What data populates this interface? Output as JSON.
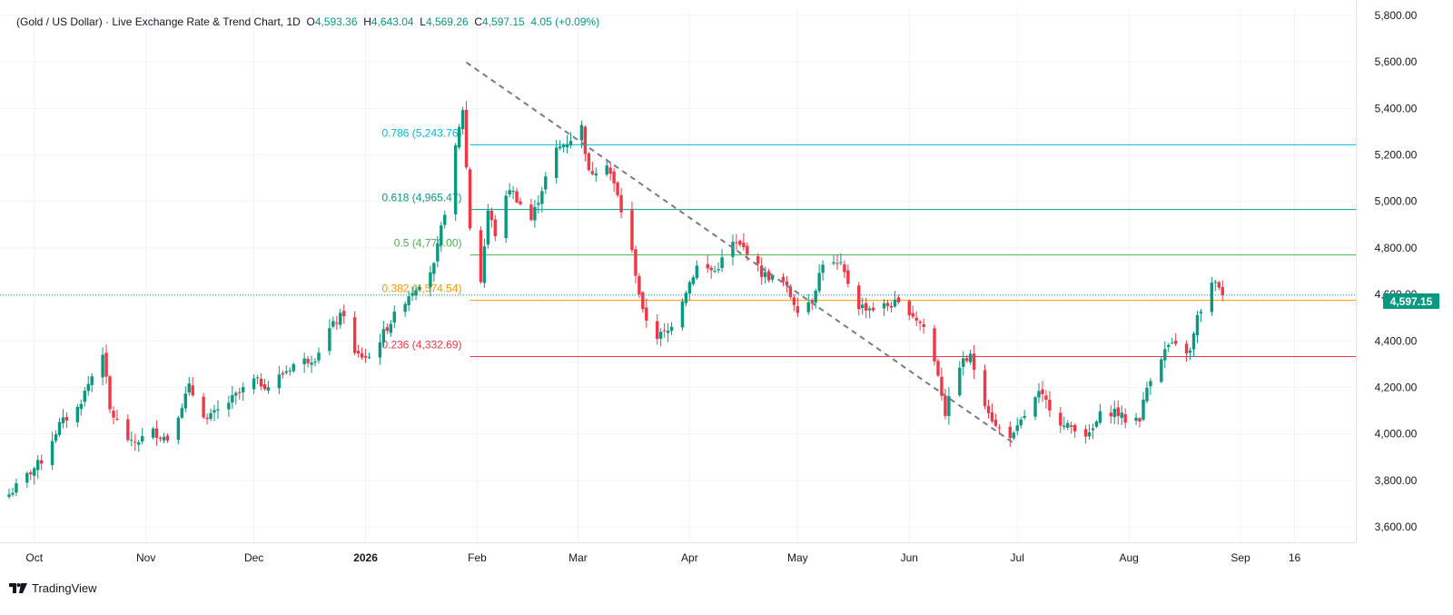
{
  "header": {
    "title": "(Gold / US Dollar) · Live Exchange Rate & Trend Chart, 1D",
    "o_label": "O",
    "o_value": "4,593.36",
    "h_label": "H",
    "h_value": "4,643.04",
    "l_label": "L",
    "l_value": "4,569.26",
    "c_label": "C",
    "c_value": "4,597.15",
    "change": "4.05 (+0.09%)"
  },
  "brand": {
    "logo_icon": "tradingview-logo-icon",
    "name": "TradingView"
  },
  "last_price": {
    "label": "4,597.15",
    "value": 4597.15,
    "color": "#089981"
  },
  "colors": {
    "up": "#089981",
    "down": "#f23645",
    "grid": "#f0f3fa",
    "axis_text": "#131722"
  },
  "chart_data": {
    "type": "candlestick",
    "title": "(Gold / US Dollar) · Live Exchange Rate & Trend Chart, 1D",
    "ylim": [
      3520,
      5850
    ],
    "y_ticks": [
      3600,
      3800,
      4000,
      4200,
      4400,
      4600,
      4800,
      5000,
      5200,
      5400,
      5600,
      5800
    ],
    "y_tick_labels": [
      "3,600.00",
      "3,800.00",
      "4,000.00",
      "4,200.00",
      "4,400.00",
      "4,600.00",
      "4,800.00",
      "5,000.00",
      "5,200.00",
      "5,400.00",
      "5,600.00",
      "5,800.00"
    ],
    "x_ticks": [
      {
        "label": "Oct",
        "date": "2025-10-01",
        "bold": false
      },
      {
        "label": "Nov",
        "date": "2025-11-01",
        "bold": false
      },
      {
        "label": "Dec",
        "date": "2025-12-01",
        "bold": false
      },
      {
        "label": "2026",
        "date": "2026-01-01",
        "bold": true
      },
      {
        "label": "Feb",
        "date": "2026-02-01",
        "bold": false
      },
      {
        "label": "Mar",
        "date": "2026-03-01",
        "bold": false
      },
      {
        "label": "Apr",
        "date": "2026-04-01",
        "bold": false
      },
      {
        "label": "May",
        "date": "2026-05-01",
        "bold": false
      },
      {
        "label": "Jun",
        "date": "2026-06-01",
        "bold": false
      },
      {
        "label": "Jul",
        "date": "2026-07-01",
        "bold": false
      },
      {
        "label": "Aug",
        "date": "2026-08-01",
        "bold": false
      },
      {
        "label": "Sep",
        "date": "2026-09-01",
        "bold": false
      },
      {
        "label": "16",
        "date": "2026-09-16",
        "bold": false
      }
    ],
    "x_range": [
      "2025-09-24",
      "2026-10-01"
    ],
    "grid": true,
    "fibonacci": [
      {
        "ratio": "0.236",
        "label": "0.236 (4,332.69)",
        "price": 4332.69,
        "color": "#f23645"
      },
      {
        "ratio": "0.382",
        "label": "0.382 (4,574.54)",
        "price": 4574.54,
        "color": "#ff9800"
      },
      {
        "ratio": "0.5",
        "label": "0.5 (4,770.00)",
        "price": 4770.0,
        "color": "#4caf50"
      },
      {
        "ratio": "0.618",
        "label": "0.618 (4,965.47)",
        "price": 4965.47,
        "color": "#089981"
      },
      {
        "ratio": "0.786",
        "label": "0.786 (5,243.76)",
        "price": 5243.76,
        "color": "#00bcd4"
      }
    ],
    "fib_start_date": "2026-01-30",
    "trendline": {
      "from": {
        "date": "2026-01-29",
        "price": 5598
      },
      "to": {
        "date": "2026-06-30",
        "price": 3960
      }
    },
    "anchors": [
      {
        "date": "2025-09-24",
        "price": 3740
      },
      {
        "date": "2025-10-03",
        "price": 3885
      },
      {
        "date": "2025-10-08",
        "price": 4040
      },
      {
        "date": "2025-10-13",
        "price": 4110
      },
      {
        "date": "2025-10-20",
        "price": 4355
      },
      {
        "date": "2025-10-22",
        "price": 4100
      },
      {
        "date": "2025-10-28",
        "price": 3955
      },
      {
        "date": "2025-11-03",
        "price": 4010
      },
      {
        "date": "2025-11-07",
        "price": 3980
      },
      {
        "date": "2025-11-13",
        "price": 4200
      },
      {
        "date": "2025-11-18",
        "price": 4060
      },
      {
        "date": "2025-11-25",
        "price": 4150
      },
      {
        "date": "2025-12-01",
        "price": 4230
      },
      {
        "date": "2025-12-05",
        "price": 4205
      },
      {
        "date": "2025-12-12",
        "price": 4300
      },
      {
        "date": "2025-12-18",
        "price": 4330
      },
      {
        "date": "2025-12-22",
        "price": 4450
      },
      {
        "date": "2025-12-26",
        "price": 4520
      },
      {
        "date": "2025-12-29",
        "price": 4340
      },
      {
        "date": "2026-01-02",
        "price": 4330
      },
      {
        "date": "2026-01-07",
        "price": 4460
      },
      {
        "date": "2026-01-13",
        "price": 4600
      },
      {
        "date": "2026-01-20",
        "price": 4720
      },
      {
        "date": "2026-01-23",
        "price": 4960
      },
      {
        "date": "2026-01-28",
        "price": 5400
      },
      {
        "date": "2026-01-30",
        "price": 4890
      },
      {
        "date": "2026-02-02",
        "price": 4660
      },
      {
        "date": "2026-02-04",
        "price": 4960
      },
      {
        "date": "2026-02-06",
        "price": 4860
      },
      {
        "date": "2026-02-10",
        "price": 5060
      },
      {
        "date": "2026-02-16",
        "price": 4920
      },
      {
        "date": "2026-02-20",
        "price": 5100
      },
      {
        "date": "2026-02-23",
        "price": 5220
      },
      {
        "date": "2026-02-27",
        "price": 5270
      },
      {
        "date": "2026-03-02",
        "price": 5320
      },
      {
        "date": "2026-03-04",
        "price": 5120
      },
      {
        "date": "2026-03-09",
        "price": 5170
      },
      {
        "date": "2026-03-12",
        "price": 5020
      },
      {
        "date": "2026-03-16",
        "price": 4780
      },
      {
        "date": "2026-03-19",
        "price": 4520
      },
      {
        "date": "2026-03-23",
        "price": 4420
      },
      {
        "date": "2026-03-26",
        "price": 4440
      },
      {
        "date": "2026-03-31",
        "price": 4620
      },
      {
        "date": "2026-04-03",
        "price": 4720
      },
      {
        "date": "2026-04-08",
        "price": 4700
      },
      {
        "date": "2026-04-13",
        "price": 4820
      },
      {
        "date": "2026-04-17",
        "price": 4790
      },
      {
        "date": "2026-04-21",
        "price": 4690
      },
      {
        "date": "2026-04-27",
        "price": 4650
      },
      {
        "date": "2026-05-01",
        "price": 4540
      },
      {
        "date": "2026-05-05",
        "price": 4580
      },
      {
        "date": "2026-05-08",
        "price": 4740
      },
      {
        "date": "2026-05-13",
        "price": 4720
      },
      {
        "date": "2026-05-18",
        "price": 4550
      },
      {
        "date": "2026-05-22",
        "price": 4540
      },
      {
        "date": "2026-05-28",
        "price": 4560
      },
      {
        "date": "2026-06-01",
        "price": 4530
      },
      {
        "date": "2026-06-05",
        "price": 4460
      },
      {
        "date": "2026-06-09",
        "price": 4260
      },
      {
        "date": "2026-06-11",
        "price": 4090
      },
      {
        "date": "2026-06-15",
        "price": 4300
      },
      {
        "date": "2026-06-18",
        "price": 4330
      },
      {
        "date": "2026-06-22",
        "price": 4140
      },
      {
        "date": "2026-06-25",
        "price": 4030
      },
      {
        "date": "2026-06-30",
        "price": 3990
      },
      {
        "date": "2026-07-03",
        "price": 4080
      },
      {
        "date": "2026-07-07",
        "price": 4170
      },
      {
        "date": "2026-07-10",
        "price": 4120
      },
      {
        "date": "2026-07-14",
        "price": 4030
      },
      {
        "date": "2026-07-17",
        "price": 4030
      },
      {
        "date": "2026-07-21",
        "price": 3990
      },
      {
        "date": "2026-07-24",
        "price": 4080
      },
      {
        "date": "2026-07-28",
        "price": 4100
      },
      {
        "date": "2026-07-31",
        "price": 4060
      },
      {
        "date": "2026-08-04",
        "price": 4070
      },
      {
        "date": "2026-08-06",
        "price": 4200
      },
      {
        "date": "2026-08-08",
        "price": 4290
      },
      {
        "date": "2026-08-12",
        "price": 4380
      },
      {
        "date": "2026-08-15",
        "price": 4370
      },
      {
        "date": "2026-08-18",
        "price": 4350
      },
      {
        "date": "2026-08-20",
        "price": 4500
      },
      {
        "date": "2026-08-24",
        "price": 4640
      },
      {
        "date": "2026-08-26",
        "price": 4640
      },
      {
        "date": "2026-08-27",
        "price": 4597.15
      }
    ]
  }
}
